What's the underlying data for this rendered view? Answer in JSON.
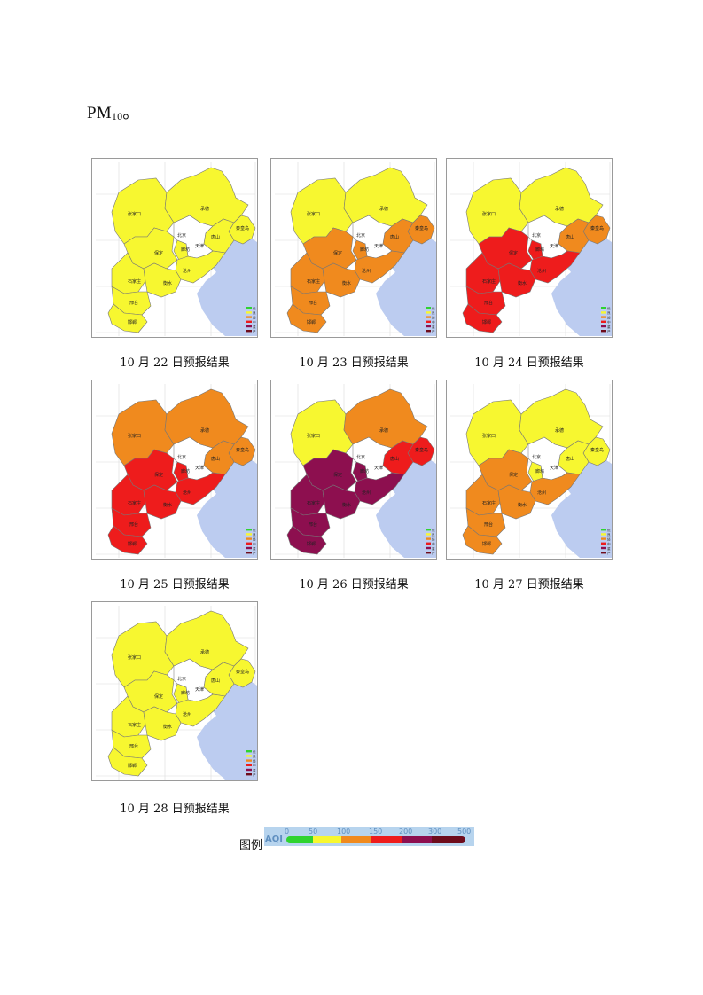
{
  "intro": {
    "text": "PM",
    "subscript": "10",
    "suffix": "。"
  },
  "city_labels": [
    "张家口",
    "承德",
    "北京",
    "天津",
    "唐山",
    "秦皇岛",
    "廊坊",
    "保定",
    "沧州",
    "石家庄",
    "衡水",
    "邢台",
    "邯郸"
  ],
  "map_legend": [
    "优",
    "良",
    "轻",
    "中",
    "重",
    "严"
  ],
  "maps": [
    {
      "caption": "10 月 22 日预报结果",
      "levels": {
        "zjk": "良",
        "cd": "良",
        "qhd": "良",
        "ts": "良",
        "lf": "良",
        "bd": "良",
        "cz": "良",
        "sjz": "良",
        "hs": "良",
        "xt": "良",
        "hd": "良",
        "bj_tj": "—"
      }
    },
    {
      "caption": "10 月 23 日预报结果",
      "levels": {
        "zjk": "良",
        "cd": "良",
        "qhd": "轻",
        "ts": "轻",
        "lf": "轻",
        "bd": "轻",
        "cz": "轻",
        "sjz": "轻",
        "hs": "轻",
        "xt": "轻",
        "hd": "轻"
      }
    },
    {
      "caption": "10 月 24 日预报结果",
      "levels": {
        "zjk": "良",
        "cd": "良",
        "qhd": "轻",
        "ts": "轻",
        "lf": "中",
        "bd": "中",
        "cz": "中",
        "sjz": "中",
        "hs": "中",
        "xt": "中",
        "hd": "中"
      }
    },
    {
      "caption": "10 月 25 日预报结果",
      "levels": {
        "zjk": "轻",
        "cd": "轻",
        "qhd": "轻",
        "ts": "轻",
        "lf": "中",
        "bd": "中",
        "cz": "中",
        "sjz": "中",
        "hs": "中",
        "xt": "中",
        "hd": "中"
      }
    },
    {
      "caption": "10 月 26 日预报结果",
      "levels": {
        "zjk": "良",
        "cd": "轻",
        "qhd": "中",
        "ts": "中",
        "lf": "重",
        "bd": "重",
        "cz": "重",
        "sjz": "重",
        "hs": "重",
        "xt": "重",
        "hd": "重"
      }
    },
    {
      "caption": "10 月 27 日预报结果",
      "levels": {
        "zjk": "良",
        "cd": "良",
        "qhd": "良",
        "ts": "良",
        "lf": "良",
        "bd": "轻",
        "cz": "轻",
        "sjz": "轻",
        "hs": "轻",
        "xt": "轻",
        "hd": "轻"
      }
    },
    {
      "caption": "10 月 28 日预报结果",
      "levels": {
        "zjk": "良",
        "cd": "良",
        "qhd": "良",
        "ts": "良",
        "lf": "良",
        "bd": "良",
        "cz": "良",
        "sjz": "良",
        "hs": "良",
        "xt": "良",
        "hd": "良"
      }
    }
  ],
  "legend": {
    "title": "图例",
    "label": "AQI",
    "ticks": [
      "0",
      "50",
      "100",
      "150",
      "200",
      "300",
      "500"
    ],
    "colors": {
      "优": "#2fd32f",
      "良": "#f7f730",
      "轻": "#f08a1e",
      "中": "#ee1c1c",
      "重": "#8d0f4f",
      "严": "#6e0c1c"
    }
  }
}
